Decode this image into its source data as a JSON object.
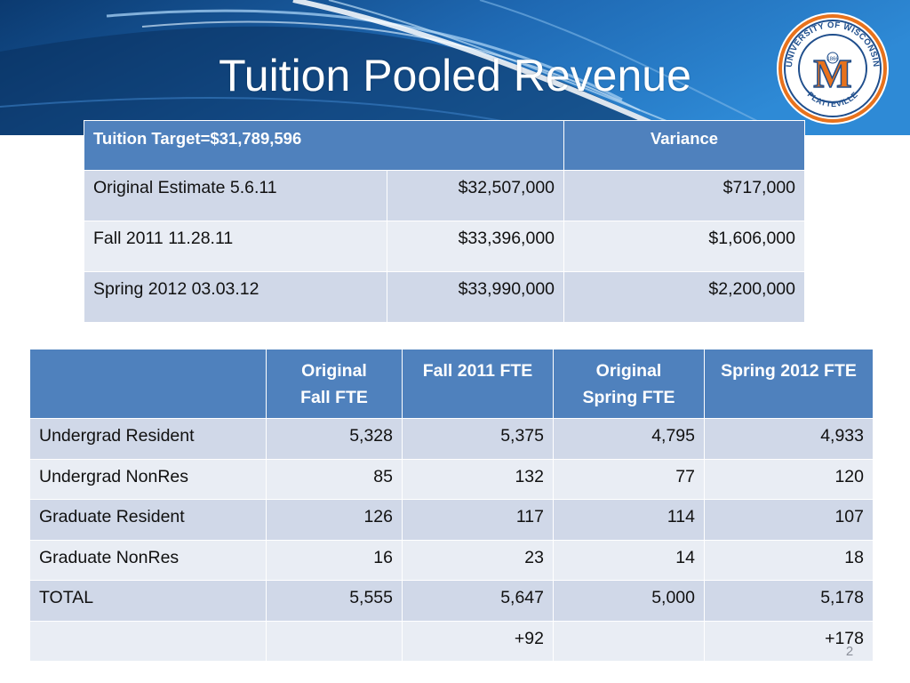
{
  "slide": {
    "title": "Tuition Pooled Revenue",
    "page_number": "2"
  },
  "seal": {
    "text_top": "UNIVERSITY OF WISCONSIN",
    "text_bottom": "PLATTEVILLE",
    "year": "1866",
    "letter": "M"
  },
  "target_table": {
    "header": {
      "label": "Tuition Target=$31,789,596",
      "variance": "Variance"
    },
    "rows": [
      {
        "label": "Original Estimate  5.6.11",
        "amount": "$32,507,000",
        "variance": "$717,000"
      },
      {
        "label": "Fall 2011  11.28.11",
        "amount": "$33,396,000",
        "variance": "$1,606,000"
      },
      {
        "label": "Spring 2012  03.03.12",
        "amount": "$33,990,000",
        "variance": "$2,200,000"
      }
    ]
  },
  "fte_table": {
    "headers": {
      "blank": "",
      "orig_fall_1": "Original",
      "orig_fall_2": "Fall FTE",
      "fall_2011": "Fall 2011 FTE",
      "orig_spring_1": "Original",
      "orig_spring_2": "Spring FTE",
      "spring_2012": "Spring 2012 FTE"
    },
    "rows": [
      {
        "label": "Undergrad Resident",
        "orig_fall": "5,328",
        "fall_2011": "5,375",
        "orig_spring": "4,795",
        "spring_2012": "4,933"
      },
      {
        "label": "Undergrad NonRes",
        "orig_fall": "85",
        "fall_2011": "132",
        "orig_spring": "77",
        "spring_2012": "120"
      },
      {
        "label": "Graduate Resident",
        "orig_fall": "126",
        "fall_2011": "117",
        "orig_spring": "114",
        "spring_2012": "107"
      },
      {
        "label": "Graduate NonRes",
        "orig_fall": "16",
        "fall_2011": "23",
        "orig_spring": "14",
        "spring_2012": "18"
      },
      {
        "label": "TOTAL",
        "orig_fall": "5,555",
        "fall_2011": "5,647",
        "orig_spring": "5,000",
        "spring_2012": "5,178"
      },
      {
        "label": "",
        "orig_fall": "",
        "fall_2011": "+92",
        "orig_spring": "",
        "spring_2012": "+178"
      }
    ]
  },
  "colors": {
    "header_blue": "#4f81bd",
    "row_dark": "#d0d8e8",
    "row_light": "#e9edf4",
    "banner_dark": "#0d3f78",
    "banner_light": "#2f86cf",
    "seal_orange": "#e8721c",
    "seal_navy": "#1f4e8c"
  }
}
